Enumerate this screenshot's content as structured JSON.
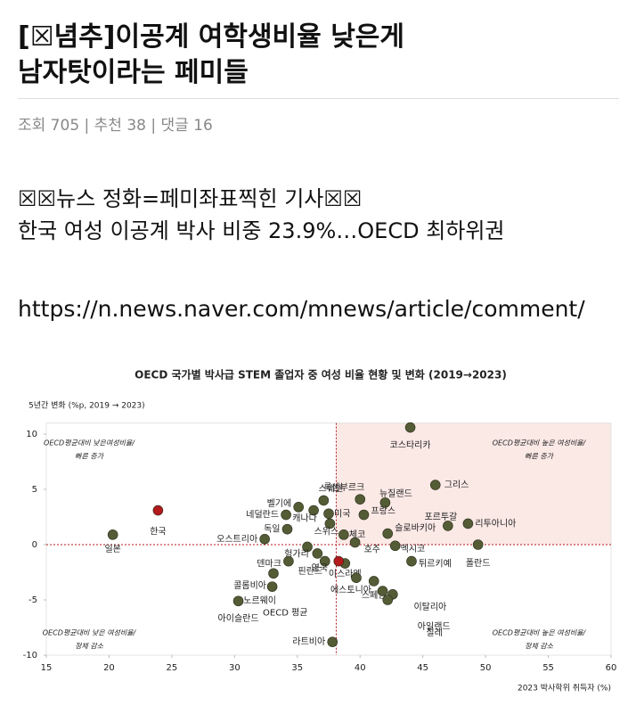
{
  "post": {
    "title": [
      "[☒념추]이공계 여학생비율 낮은게",
      "남자탓이라는 페미들"
    ],
    "meta": "조회 705 | 추천 38 | 댓글 16",
    "body": [
      "☒☒뉴스 정화=페미좌표찍힌 기사☒☒",
      "한국 여성 이공계 박사 비중 23.9%…OECD 최하위권"
    ],
    "link": "https://n.news.naver.com/mnews/article/comment/"
  },
  "chart_data": {
    "type": "scatter",
    "title": "OECD 국가별 박사급 STEM 졸업자 중 여성 비율 현황 및 변화 (2019→2023)",
    "y_label": "5년간 변화 (%p, 2019 → 2023)",
    "x_label": "2023 박사학위 취득자 (%)",
    "xlim": [
      15,
      60
    ],
    "ylim": [
      -10,
      11
    ],
    "xticks": [
      15,
      20,
      25,
      30,
      35,
      40,
      45,
      50,
      55,
      60
    ],
    "yticks": [
      -10,
      -5,
      0,
      5,
      10
    ],
    "reference_x": 38.1,
    "reference_y": 0,
    "color": "#545c36",
    "highlight_color": "#b3191d",
    "highlight": [
      1,
      37
    ],
    "shade_color": "#fbe9e6",
    "quadrant_notes": [
      [
        "OECD평균대비 낮은여성비율/",
        "빠른 증가"
      ],
      [
        "OECD평균대비 높은 여성비율/",
        "빠른 증가"
      ],
      [
        "OECD평균대비 낮은 여성비율/",
        "정체 감소"
      ],
      [
        "OECD평균대비 높은 여성비율/",
        "정체 감소"
      ]
    ],
    "labels": [
      "일본",
      "한국",
      "코스타리카",
      "그리스",
      "뉴질랜드",
      "룩셈부르크",
      "스웨덴",
      "벨기에",
      "캐나다",
      "미국",
      "프랑스",
      "스위스",
      "네덜란드",
      "독일",
      "오스트리아",
      "체코",
      "호주",
      "슬로바키아",
      "포르투갈",
      "리투아니아",
      "멕시코",
      "폴란드",
      "튀르키예",
      "헝가리",
      "덴마크",
      "핀란드",
      "영국",
      "이스라엘",
      "에스토니아",
      "스페인",
      "콜롬비아",
      "노르웨이",
      "아이슬란드",
      "이탈리아",
      "아일랜드",
      "칠레",
      "라트비아",
      "OECD 평균"
    ],
    "x": [
      20.3,
      23.9,
      44.0,
      46.0,
      42.0,
      40.0,
      37.1,
      35.1,
      36.3,
      37.5,
      40.3,
      37.6,
      34.1,
      34.2,
      32.4,
      38.7,
      39.6,
      42.2,
      47.0,
      48.6,
      42.8,
      49.4,
      44.1,
      35.8,
      34.3,
      36.6,
      37.2,
      38.8,
      39.7,
      41.1,
      33.1,
      33.0,
      30.3,
      42.6,
      42.2,
      41.8,
      37.8,
      38.3
    ],
    "values": [
      0.9,
      3.1,
      10.6,
      5.4,
      3.8,
      4.1,
      4.0,
      3.4,
      3.1,
      2.8,
      2.7,
      1.9,
      2.7,
      1.4,
      0.5,
      0.9,
      0.2,
      1.0,
      1.7,
      1.9,
      -0.1,
      0.0,
      -1.5,
      -0.2,
      -1.5,
      -0.8,
      -1.5,
      -1.7,
      -3.0,
      -3.3,
      -2.6,
      -3.8,
      -5.1,
      -4.5,
      -5.0,
      -4.2,
      -8.8,
      -1.5
    ]
  }
}
